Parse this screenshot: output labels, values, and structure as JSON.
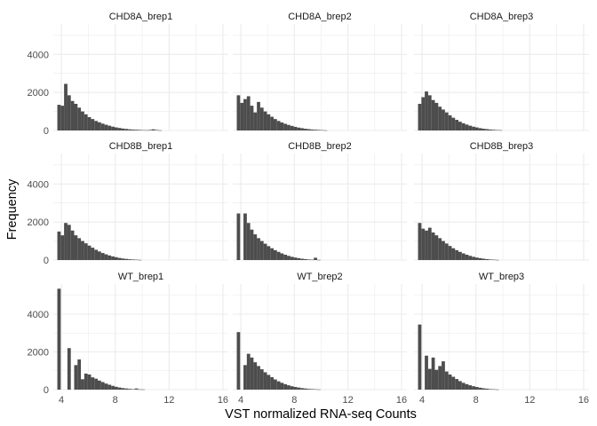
{
  "chart_data": {
    "type": "bar",
    "subtype": "faceted-histogram",
    "xlabel": "VST normalized RNA-seq Counts",
    "ylabel": "Frequency",
    "xlim": [
      3.4,
      16.4
    ],
    "ylim": [
      0,
      5600
    ],
    "x_ticks": [
      4,
      8,
      12,
      16
    ],
    "y_ticks": [
      0,
      2000,
      4000
    ],
    "bin_start": 3.7,
    "bin_width": 0.25,
    "grid": true,
    "bar_color": "#4d4d4d",
    "grid_color": "#ebebeb",
    "panels": [
      {
        "title": "CHD8A_brep1",
        "counts": [
          1350,
          1300,
          2450,
          1850,
          1550,
          1400,
          1200,
          1000,
          850,
          700,
          600,
          500,
          430,
          360,
          300,
          250,
          200,
          160,
          130,
          100,
          80,
          60,
          45,
          40,
          30,
          20,
          15,
          30,
          60,
          30,
          10
        ]
      },
      {
        "title": "CHD8A_brep2",
        "counts": [
          1850,
          1450,
          1650,
          1800,
          1300,
          950,
          1500,
          1200,
          1000,
          850,
          720,
          600,
          500,
          420,
          350,
          290,
          240,
          190,
          150,
          120,
          90,
          70,
          50,
          40,
          30,
          20,
          10
        ]
      },
      {
        "title": "CHD8A_brep3",
        "counts": [
          1400,
          1750,
          2050,
          1850,
          1600,
          1450,
          1250,
          1100,
          950,
          800,
          670,
          560,
          460,
          380,
          310,
          250,
          200,
          160,
          120,
          90,
          70,
          50,
          35,
          25,
          15
        ]
      },
      {
        "title": "CHD8B_brep1",
        "counts": [
          1500,
          1300,
          1950,
          1850,
          1550,
          1300,
          1150,
          1000,
          880,
          760,
          650,
          540,
          450,
          370,
          300,
          240,
          190,
          150,
          110,
          80,
          60,
          40,
          30,
          20,
          10
        ]
      },
      {
        "title": "CHD8B_brep2",
        "counts": [
          2450,
          0,
          2450,
          1950,
          1600,
          1350,
          1150,
          1000,
          860,
          730,
          620,
          520,
          430,
          350,
          280,
          220,
          170,
          130,
          100,
          70,
          50,
          30,
          20,
          120,
          10
        ]
      },
      {
        "title": "CHD8B_brep3",
        "counts": [
          1950,
          1650,
          1550,
          1700,
          1450,
          1300,
          1150,
          1000,
          870,
          740,
          620,
          520,
          430,
          350,
          280,
          220,
          170,
          130,
          100,
          70,
          50,
          30,
          20,
          10
        ]
      },
      {
        "title": "WT_brep1",
        "counts": [
          5350,
          0,
          0,
          2200,
          0,
          1300,
          1600,
          550,
          850,
          800,
          650,
          580,
          480,
          400,
          320,
          260,
          200,
          150,
          110,
          80,
          60,
          40,
          25,
          60,
          15,
          10
        ]
      },
      {
        "title": "WT_brep2",
        "counts": [
          3050,
          0,
          1300,
          1900,
          1700,
          1450,
          1250,
          1080,
          920,
          780,
          660,
          540,
          440,
          360,
          290,
          230,
          180,
          140,
          110,
          80,
          60,
          40,
          30,
          20,
          10
        ]
      },
      {
        "title": "WT_brep3",
        "counts": [
          3450,
          0,
          1800,
          1100,
          1700,
          1050,
          1250,
          1500,
          960,
          800,
          680,
          560,
          450,
          360,
          290,
          230,
          180,
          140,
          100,
          70,
          50,
          30,
          20,
          10
        ]
      }
    ]
  }
}
